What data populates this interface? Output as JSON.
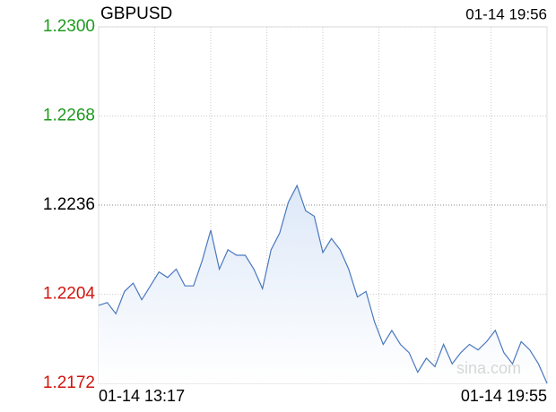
{
  "chart_data": {
    "type": "line",
    "title": "GBPUSD",
    "timestamp": "01-14 19:56",
    "watermark": "sina.com",
    "categories": [
      "01-14 13:17",
      null,
      null,
      null,
      null,
      null,
      null,
      null,
      null,
      null,
      null,
      null,
      null,
      null,
      null,
      null,
      null,
      null,
      null,
      null,
      null,
      null,
      null,
      null,
      null,
      null,
      null,
      null,
      null,
      null,
      null,
      null,
      null,
      null,
      null,
      null,
      null,
      null,
      null,
      null,
      null,
      null,
      null,
      null,
      null,
      null,
      null,
      null,
      null,
      null,
      null,
      null,
      "01-14 19:55"
    ],
    "values": [
      1.22,
      1.2201,
      1.2197,
      1.2205,
      1.2208,
      1.2202,
      1.2207,
      1.2212,
      1.221,
      1.2213,
      1.2207,
      1.2207,
      1.2216,
      1.2227,
      1.2213,
      1.222,
      1.2218,
      1.2218,
      1.2213,
      1.2206,
      1.222,
      1.2226,
      1.2237,
      1.2243,
      1.2234,
      1.2232,
      1.2219,
      1.2224,
      1.222,
      1.2213,
      1.2203,
      1.2205,
      1.2194,
      1.2186,
      1.2191,
      1.2186,
      1.2183,
      1.2176,
      1.2181,
      1.2178,
      1.2186,
      1.2179,
      1.2183,
      1.2186,
      1.2184,
      1.2187,
      1.2191,
      1.2183,
      1.2179,
      1.2187,
      1.2184,
      1.2179,
      1.2172
    ],
    "color": "#4a78bd",
    "fill_color": "#dde8f8",
    "ylim": [
      1.2172,
      1.23
    ],
    "yticks": [
      {
        "value": 1.23,
        "label": "1.2300"
      },
      1.2268,
      1.2236,
      1.2204,
      1.2172
    ],
    "ytick_colors": [
      "#1e9a1e",
      "#1e9a1e",
      "#000000",
      "#d0140c",
      "#d0140c"
    ],
    "grid": true
  }
}
